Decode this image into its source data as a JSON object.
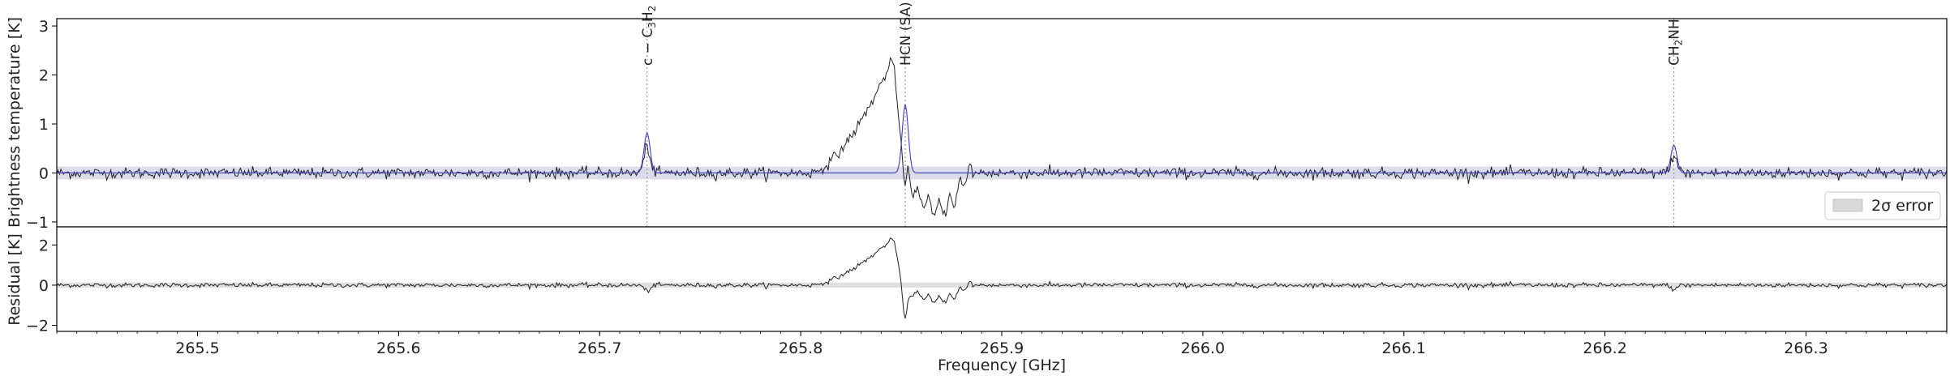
{
  "chart_data": {
    "type": "line",
    "xlabel": "Frequency [GHz]",
    "xlim": [
      265.43,
      266.37
    ],
    "xticks": [
      "265.5",
      "265.6",
      "265.7",
      "265.8",
      "265.9",
      "266.0",
      "266.1",
      "266.2",
      "266.3"
    ],
    "panels": [
      {
        "name": "spectrum",
        "ylabel": "Brightness temperature [K]",
        "ylim": [
          -1.1,
          3.15
        ],
        "yticks": [
          "3",
          "2",
          "1",
          "0",
          "−1"
        ],
        "error_band": 0.13,
        "legend": {
          "label": "2σ error",
          "placement": "lower-right"
        },
        "line_ids": [
          {
            "label_main": "c − C",
            "label_sub": "3",
            "label_end": "H",
            "label_sub2": "2",
            "freq": 265.7236,
            "peak": 0.82,
            "width": 0.0015
          },
          {
            "label_main": "HCN (SA)",
            "label_sub": "",
            "label_end": "",
            "label_sub2": "",
            "freq": 265.852,
            "peak": 1.4,
            "width": 0.0015
          },
          {
            "label_main": "CH",
            "label_sub": "2",
            "label_end": "NH",
            "label_sub2": "",
            "freq": 266.2343,
            "peak": 0.57,
            "width": 0.0015
          }
        ]
      },
      {
        "name": "residual",
        "ylabel": "Residual [K]",
        "ylim": [
          -2.3,
          2.9
        ],
        "yticks": [
          "2",
          "0",
          "−2"
        ],
        "error_band": 0.13
      }
    ],
    "series": [
      {
        "name": "observed",
        "color": "#222222"
      },
      {
        "name": "model",
        "color": "#3a3ad6"
      }
    ]
  }
}
